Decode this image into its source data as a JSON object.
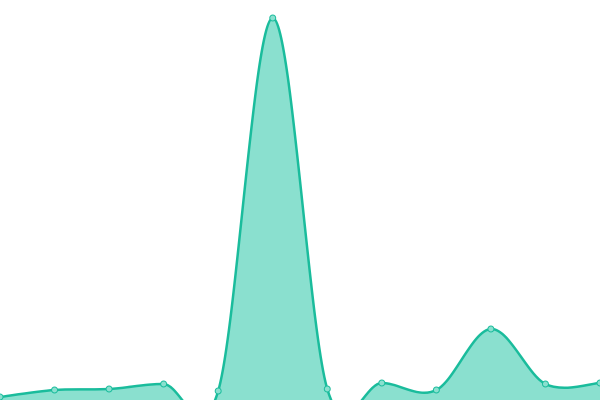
{
  "chart_data": {
    "type": "area",
    "values": [
      3,
      10,
      11,
      16,
      9,
      382,
      11,
      17,
      10,
      71,
      16,
      17
    ],
    "ylim": [
      0,
      400
    ],
    "color": "#1abc9c",
    "fill": "#8ae0cf"
  }
}
